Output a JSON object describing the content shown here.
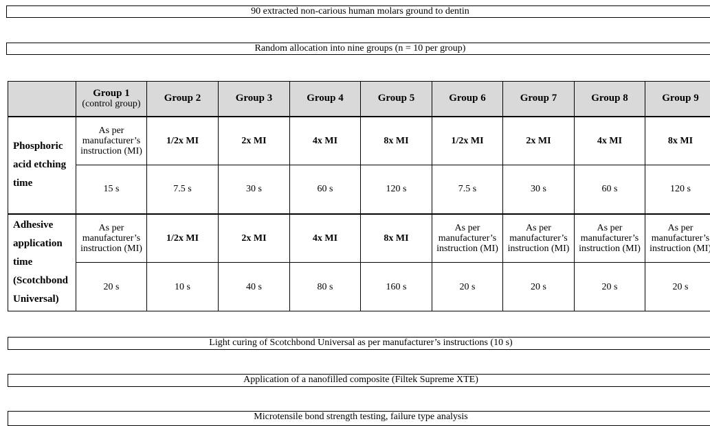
{
  "steps": {
    "step1": "90 extracted non-carious human molars ground to dentin",
    "step2": "Random allocation into nine groups (n = 10 per group)",
    "step3": "Light curing of Scotchbond Universal as per manufacturer’s instructions (10 s)",
    "step4": "Application of a nanofilled composite (Filtek Supreme XTE)",
    "step5": "Microtensile bond strength testing, failure type analysis"
  },
  "table": {
    "headers": [
      {
        "label": "Group 1",
        "sub": "(control group)"
      },
      {
        "label": "Group 2"
      },
      {
        "label": "Group 3"
      },
      {
        "label": "Group 4"
      },
      {
        "label": "Group 5"
      },
      {
        "label": "Group 6"
      },
      {
        "label": "Group 7"
      },
      {
        "label": "Group 8"
      },
      {
        "label": "Group 9"
      }
    ],
    "etching": {
      "label": "Phosphoric acid etching time",
      "factor": [
        "As per manufacturer’s instruction (MI)",
        "1/2x MI",
        "2x MI",
        "4x MI",
        "8x MI",
        "1/2x MI",
        "2x MI",
        "4x MI",
        "8x MI"
      ],
      "time": [
        "15 s",
        "7.5 s",
        "30 s",
        "60 s",
        "120 s",
        "7.5 s",
        "30 s",
        "60 s",
        "120 s"
      ]
    },
    "adhesive": {
      "label": "Adhesive application time (Scotchbond Universal)",
      "factor": [
        "As per manufacturer’s instruction (MI)",
        "1/2x MI",
        "2x MI",
        "4x MI",
        "8x MI",
        "As per manufacturer’s instruction (MI)",
        "As per manufacturer’s instruction (MI)",
        "As per manufacturer’s instruction (MI)",
        "As per manufacturer’s instruction (MI)"
      ],
      "time": [
        "20 s",
        "10 s",
        "40 s",
        "80 s",
        "160 s",
        "20 s",
        "20 s",
        "20 s",
        "20 s"
      ]
    }
  }
}
